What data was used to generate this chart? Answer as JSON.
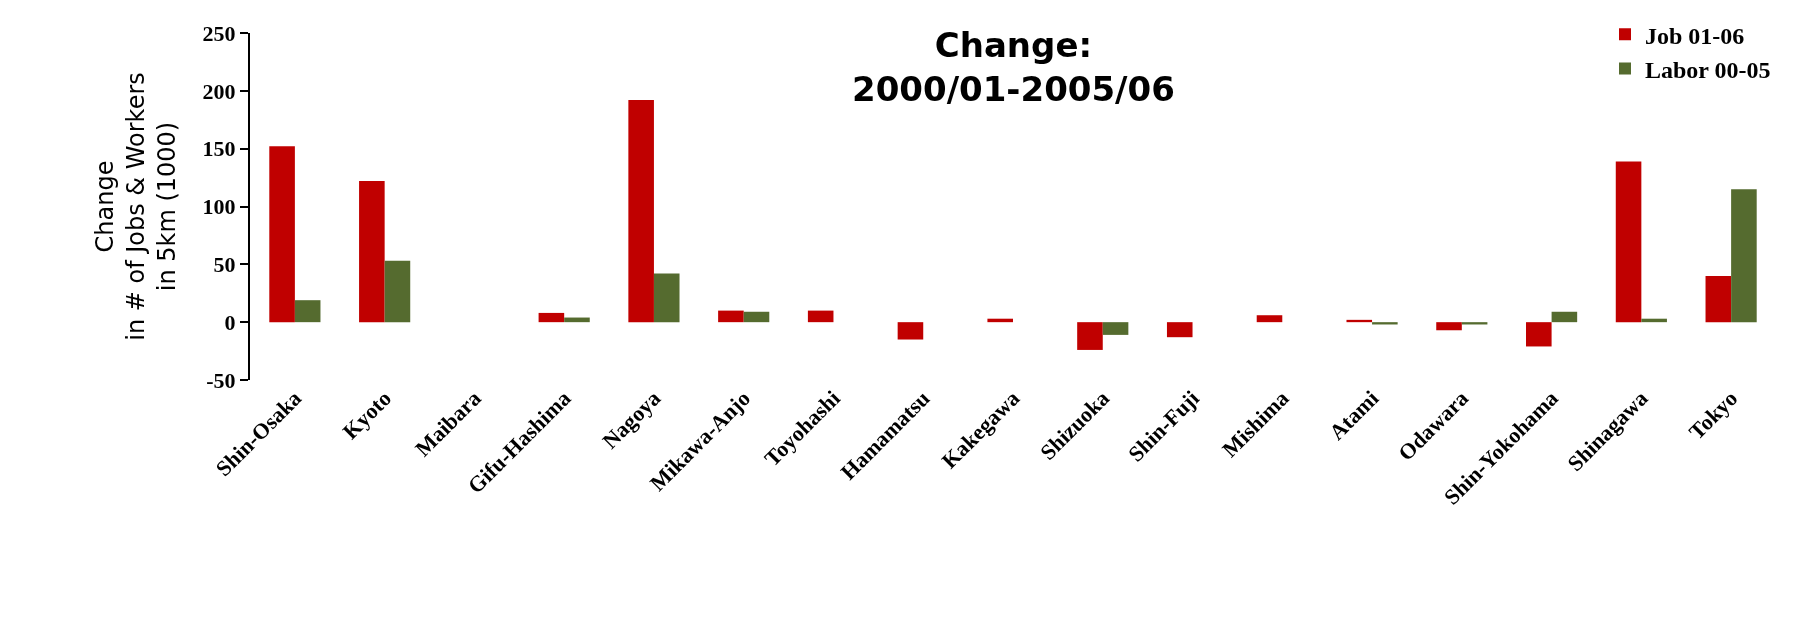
{
  "chart_data": {
    "type": "bar",
    "title": "Change:\n2000/01-2005/06",
    "ylabel": "Change\nin # of Jobs & Workers\nin 5km (1000)",
    "categories": [
      "Shin-Osaka",
      "Kyoto",
      "Maibara",
      "Gifu-Hashima",
      "Nagoya",
      "Mikawa-Anjo",
      "Toyohashi",
      "Hamamatsu",
      "Kakegawa",
      "Shizuoka",
      "Shin-Fuji",
      "Mishima",
      "Atami",
      "Odawara",
      "Shin-Yokohama",
      "Shinagawa",
      "Tokyo"
    ],
    "series": [
      {
        "name": "Job 01-06",
        "color": "#c00000",
        "values": [
          152,
          122,
          0,
          8,
          192,
          10,
          10,
          -15,
          3,
          -24,
          -13,
          6,
          2,
          -7,
          -21,
          139,
          40
        ]
      },
      {
        "name": "Labor 00-05",
        "color": "#556b2f",
        "values": [
          19,
          53,
          0,
          4,
          42,
          9,
          0,
          0,
          0,
          -11,
          0,
          0,
          -2,
          -2,
          9,
          3,
          115
        ]
      }
    ],
    "ylim": [
      -50,
      250
    ],
    "yticks": [
      -50,
      0,
      50,
      100,
      150,
      200,
      250
    ],
    "legend": "top right"
  }
}
